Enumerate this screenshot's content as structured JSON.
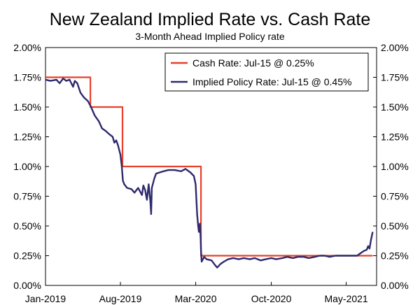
{
  "chart_data": {
    "type": "line",
    "title": "New Zealand Implied Rate vs. Cash Rate",
    "subtitle": "3-Month Ahead Implied Policy rate",
    "xlabel": "",
    "ylabel": "",
    "ylim": [
      0,
      2.0
    ],
    "x_range": [
      "2019-01",
      "2021-07"
    ],
    "x_tick_labels": [
      "Jan-2019",
      "Aug-2019",
      "Mar-2020",
      "Oct-2020",
      "May-2021"
    ],
    "y_tick_labels": [
      "0.00%",
      "0.25%",
      "0.50%",
      "0.75%",
      "1.00%",
      "1.25%",
      "1.50%",
      "1.75%",
      "2.00%"
    ],
    "y_ticks": [
      0,
      0.25,
      0.5,
      0.75,
      1.0,
      1.25,
      1.5,
      1.75,
      2.0
    ],
    "grid": false,
    "legend_position": "top-right",
    "series": [
      {
        "name": "Cash Rate: Jul-15 @ 0.25%",
        "color": "#e8402a",
        "step": true,
        "points": [
          [
            "2019-01-01",
            1.75
          ],
          [
            "2019-05-08",
            1.75
          ],
          [
            "2019-05-08",
            1.5
          ],
          [
            "2019-08-07",
            1.5
          ],
          [
            "2019-08-07",
            1.0
          ],
          [
            "2020-03-16",
            1.0
          ],
          [
            "2020-03-16",
            0.25
          ],
          [
            "2021-07-15",
            0.25
          ]
        ]
      },
      {
        "name": "Implied Policy Rate: Jul-15 @ 0.45%",
        "color": "#2e2a6e",
        "step": false,
        "points": [
          [
            "2019-01-01",
            1.73
          ],
          [
            "2019-01-15",
            1.72
          ],
          [
            "2019-02-01",
            1.73
          ],
          [
            "2019-02-10",
            1.7
          ],
          [
            "2019-02-20",
            1.74
          ],
          [
            "2019-03-01",
            1.72
          ],
          [
            "2019-03-10",
            1.73
          ],
          [
            "2019-03-20",
            1.67
          ],
          [
            "2019-03-25",
            1.72
          ],
          [
            "2019-04-01",
            1.7
          ],
          [
            "2019-04-10",
            1.62
          ],
          [
            "2019-04-20",
            1.58
          ],
          [
            "2019-05-01",
            1.55
          ],
          [
            "2019-05-10",
            1.5
          ],
          [
            "2019-05-20",
            1.43
          ],
          [
            "2019-06-01",
            1.38
          ],
          [
            "2019-06-10",
            1.32
          ],
          [
            "2019-06-20",
            1.3
          ],
          [
            "2019-07-01",
            1.27
          ],
          [
            "2019-07-10",
            1.25
          ],
          [
            "2019-07-15",
            1.2
          ],
          [
            "2019-07-20",
            1.22
          ],
          [
            "2019-07-25",
            1.18
          ],
          [
            "2019-08-01",
            1.1
          ],
          [
            "2019-08-05",
            1.0
          ],
          [
            "2019-08-08",
            0.88
          ],
          [
            "2019-08-12",
            0.85
          ],
          [
            "2019-08-20",
            0.82
          ],
          [
            "2019-09-01",
            0.81
          ],
          [
            "2019-09-10",
            0.78
          ],
          [
            "2019-09-20",
            0.82
          ],
          [
            "2019-10-01",
            0.76
          ],
          [
            "2019-10-05",
            0.84
          ],
          [
            "2019-10-10",
            0.8
          ],
          [
            "2019-10-15",
            0.72
          ],
          [
            "2019-10-20",
            0.85
          ],
          [
            "2019-10-25",
            0.7
          ],
          [
            "2019-10-27",
            0.6
          ],
          [
            "2019-10-29",
            0.82
          ],
          [
            "2019-11-05",
            0.9
          ],
          [
            "2019-11-10",
            0.94
          ],
          [
            "2019-11-20",
            0.95
          ],
          [
            "2019-12-01",
            0.96
          ],
          [
            "2019-12-15",
            0.97
          ],
          [
            "2020-01-01",
            0.97
          ],
          [
            "2020-01-20",
            0.96
          ],
          [
            "2020-02-01",
            0.98
          ],
          [
            "2020-02-15",
            0.95
          ],
          [
            "2020-02-25",
            0.92
          ],
          [
            "2020-03-01",
            0.85
          ],
          [
            "2020-03-05",
            0.6
          ],
          [
            "2020-03-08",
            0.5
          ],
          [
            "2020-03-10",
            0.45
          ],
          [
            "2020-03-13",
            0.52
          ],
          [
            "2020-03-15",
            0.4
          ],
          [
            "2020-03-16",
            0.3
          ],
          [
            "2020-03-18",
            0.2
          ],
          [
            "2020-03-25",
            0.24
          ],
          [
            "2020-04-01",
            0.22
          ],
          [
            "2020-04-15",
            0.21
          ],
          [
            "2020-04-25",
            0.17
          ],
          [
            "2020-05-01",
            0.15
          ],
          [
            "2020-05-10",
            0.18
          ],
          [
            "2020-05-20",
            0.2
          ],
          [
            "2020-06-01",
            0.22
          ],
          [
            "2020-06-15",
            0.23
          ],
          [
            "2020-07-01",
            0.22
          ],
          [
            "2020-07-15",
            0.23
          ],
          [
            "2020-08-01",
            0.22
          ],
          [
            "2020-08-15",
            0.23
          ],
          [
            "2020-09-01",
            0.21
          ],
          [
            "2020-09-15",
            0.22
          ],
          [
            "2020-10-01",
            0.23
          ],
          [
            "2020-10-15",
            0.22
          ],
          [
            "2020-11-01",
            0.23
          ],
          [
            "2020-11-15",
            0.24
          ],
          [
            "2020-12-01",
            0.23
          ],
          [
            "2020-12-15",
            0.24
          ],
          [
            "2021-01-01",
            0.24
          ],
          [
            "2021-01-15",
            0.23
          ],
          [
            "2021-02-01",
            0.24
          ],
          [
            "2021-02-15",
            0.25
          ],
          [
            "2021-03-01",
            0.25
          ],
          [
            "2021-03-15",
            0.24
          ],
          [
            "2021-04-01",
            0.25
          ],
          [
            "2021-04-15",
            0.25
          ],
          [
            "2021-05-01",
            0.25
          ],
          [
            "2021-05-15",
            0.25
          ],
          [
            "2021-06-01",
            0.25
          ],
          [
            "2021-06-10",
            0.27
          ],
          [
            "2021-06-20",
            0.29
          ],
          [
            "2021-06-28",
            0.3
          ],
          [
            "2021-07-02",
            0.33
          ],
          [
            "2021-07-06",
            0.31
          ],
          [
            "2021-07-10",
            0.38
          ],
          [
            "2021-07-15",
            0.45
          ]
        ]
      }
    ]
  }
}
